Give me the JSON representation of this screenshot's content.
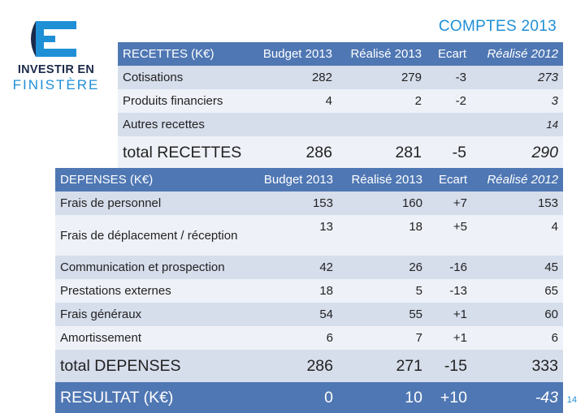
{
  "title": "COMPTES 2013",
  "logo": {
    "line1": "INVESTIR EN",
    "line2": "FINISTÈRE",
    "blue": "#1f8fd6",
    "dark": "#1b2a4a"
  },
  "recettes": {
    "headers": [
      "RECETTES (K€)",
      "Budget 2013",
      "Réalisé 2013",
      "Ecart",
      "Réalisé 2012"
    ],
    "rows": [
      [
        "Cotisations",
        "282",
        "279",
        "-3",
        "273"
      ],
      [
        "Produits financiers",
        "4",
        "2",
        "-2",
        "3"
      ],
      [
        "Autres recettes",
        "",
        "",
        "",
        "14"
      ]
    ],
    "total": [
      "total RECETTES",
      "286",
      "281",
      "-5",
      "290"
    ]
  },
  "depenses": {
    "headers": [
      "DEPENSES (K€)",
      "Budget 2013",
      "Réalisé 2013",
      "Ecart",
      "Réalisé 2012"
    ],
    "rows": [
      [
        "Frais de personnel",
        "153",
        "160",
        "+7",
        "153"
      ],
      [
        "Frais de déplacement / réception",
        "13",
        "18",
        "+5",
        "4"
      ],
      [
        "Communication et prospection",
        "42",
        "26",
        "-16",
        "45"
      ],
      [
        "Prestations externes",
        "18",
        "5",
        "-13",
        "65"
      ],
      [
        "Frais généraux",
        "54",
        "55",
        "+1",
        "60"
      ],
      [
        "Amortissement",
        "6",
        "7",
        "+1",
        "6"
      ]
    ],
    "total": [
      "total DEPENSES",
      "286",
      "271",
      "-15",
      "333"
    ]
  },
  "resultat": [
    "RESULTAT (K€)",
    "0",
    "10",
    "+10",
    "-43"
  ],
  "page_number": "14",
  "colors": {
    "header": "#4f77b3",
    "band": "#d6ddeb",
    "light": "#eef1f7",
    "title": "#1f8fd6"
  }
}
